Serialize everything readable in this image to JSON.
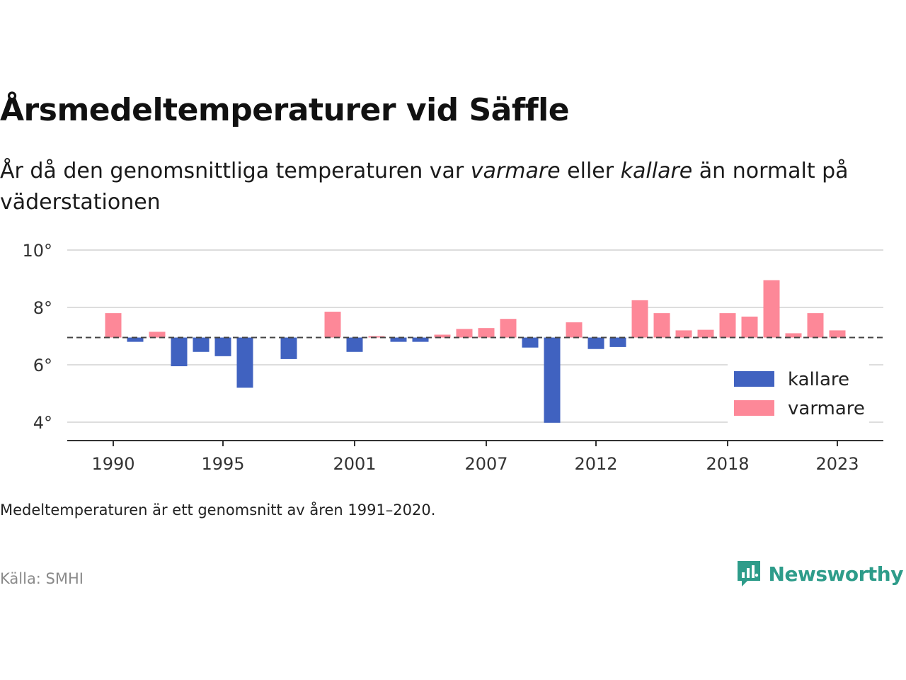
{
  "title": "Årsmedeltemperaturer vid Säffle",
  "subtitle_parts": {
    "p1": "År då den genomsnittliga temperaturen var ",
    "warm": "varmare",
    "p2": " eller ",
    "cold": "kallare",
    "p3": " än normalt på väderstationen"
  },
  "note": "Medeltemperaturen är ett genomsnitt av åren 1991–2020.",
  "source": "Källa: SMHI",
  "brand": {
    "name": "Newsworthy",
    "color": "#2e9c8a",
    "icon": "newsworthy-logo-icon"
  },
  "chart_data": {
    "type": "bar",
    "baseline": 6.95,
    "ylim": [
      3.5,
      10
    ],
    "yticks": [
      4,
      6,
      8,
      10
    ],
    "ytick_labels": [
      "4°",
      "6°",
      "8°",
      "10°"
    ],
    "xlim": [
      1988,
      2025
    ],
    "xticks": [
      1990,
      1995,
      2001,
      2007,
      2012,
      2018,
      2023
    ],
    "xtick_labels": [
      "1990",
      "1995",
      "2001",
      "2007",
      "2012",
      "2018",
      "2023"
    ],
    "grid": true,
    "legend_position": "right",
    "colors": {
      "kallare": "#4062c0",
      "varmare": "#fd8898"
    },
    "legend": [
      {
        "key": "kallare",
        "label": "kallare"
      },
      {
        "key": "varmare",
        "label": "varmare"
      }
    ],
    "years": [
      1990,
      1991,
      1992,
      1993,
      1994,
      1995,
      1996,
      1997,
      1998,
      1999,
      2000,
      2001,
      2002,
      2003,
      2004,
      2005,
      2006,
      2007,
      2008,
      2009,
      2010,
      2011,
      2012,
      2013,
      2014,
      2015,
      2016,
      2017,
      2018,
      2019,
      2020,
      2021,
      2022,
      2023
    ],
    "values": [
      7.8,
      6.8,
      7.15,
      5.95,
      6.45,
      6.3,
      5.2,
      null,
      6.2,
      null,
      7.85,
      6.45,
      7.0,
      6.8,
      6.8,
      7.05,
      7.25,
      7.28,
      7.6,
      6.6,
      3.98,
      7.48,
      6.55,
      6.62,
      8.25,
      7.8,
      7.2,
      7.22,
      7.8,
      7.68,
      8.95,
      7.1,
      7.8,
      7.2
    ]
  }
}
